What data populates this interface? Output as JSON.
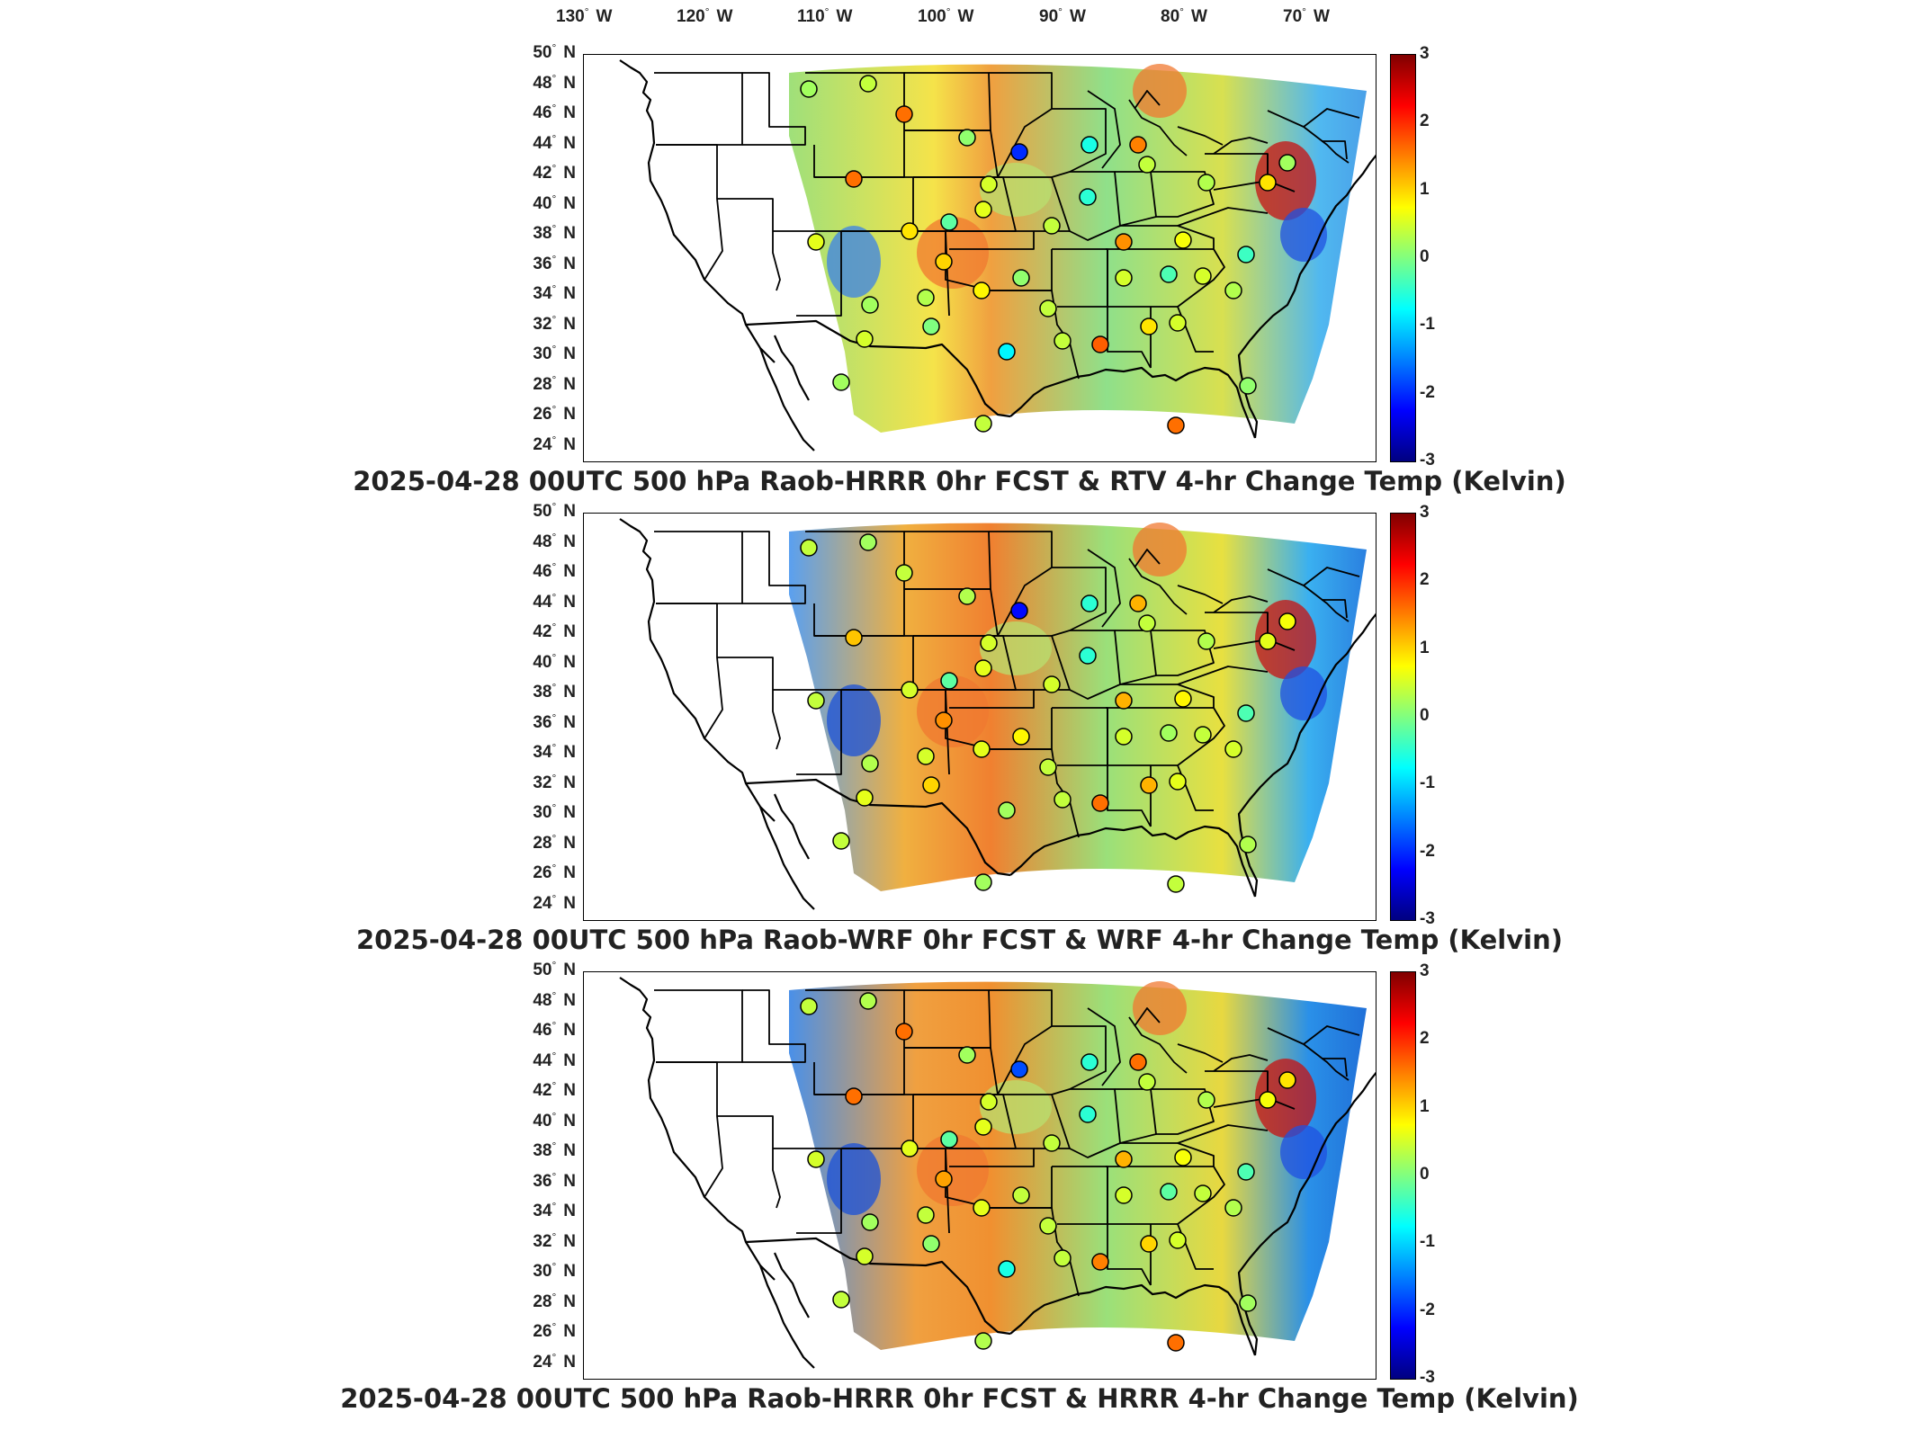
{
  "lon_labels": [
    {
      "deg": "130",
      "hemi": "W"
    },
    {
      "deg": "120",
      "hemi": "W"
    },
    {
      "deg": "110",
      "hemi": "W"
    },
    {
      "deg": "100",
      "hemi": "W"
    },
    {
      "deg": "90",
      "hemi": "W"
    },
    {
      "deg": "80",
      "hemi": "W"
    },
    {
      "deg": "70",
      "hemi": "W"
    }
  ],
  "lat_labels": [
    {
      "deg": "50",
      "hemi": "N"
    },
    {
      "deg": "48",
      "hemi": "N"
    },
    {
      "deg": "46",
      "hemi": "N"
    },
    {
      "deg": "44",
      "hemi": "N"
    },
    {
      "deg": "42",
      "hemi": "N"
    },
    {
      "deg": "40",
      "hemi": "N"
    },
    {
      "deg": "38",
      "hemi": "N"
    },
    {
      "deg": "36",
      "hemi": "N"
    },
    {
      "deg": "34",
      "hemi": "N"
    },
    {
      "deg": "32",
      "hemi": "N"
    },
    {
      "deg": "30",
      "hemi": "N"
    },
    {
      "deg": "28",
      "hemi": "N"
    },
    {
      "deg": "26",
      "hemi": "N"
    },
    {
      "deg": "24",
      "hemi": "N"
    }
  ],
  "colorbar": {
    "ticks": [
      "3",
      "2",
      "1",
      "0",
      "-1",
      "-2",
      "-3"
    ],
    "colors": [
      "#800000",
      "#ff0000",
      "#ff8000",
      "#ffff00",
      "#80ff80",
      "#00ffff",
      "#0080ff",
      "#0000ff",
      "#000080"
    ]
  },
  "panels": [
    {
      "title": "2025-04-28 00UTC 500 hPa Raob-HRRR 0hr FCST & RTV 4-hr Change Temp (Kelvin)"
    },
    {
      "title": "2025-04-28 00UTC 500 hPa Raob-WRF 0hr FCST & WRF 4-hr Change Temp (Kelvin)"
    },
    {
      "title": "2025-04-28 00UTC 500 hPa Raob-HRRR 0hr FCST & HRRR 4-hr Change Temp (Kelvin)"
    }
  ],
  "raob_station_values": [
    [
      0.2,
      0.4,
      1.6,
      0.1,
      -2.0,
      -0.6,
      1.5,
      1.6,
      0.5,
      -0.5,
      0.4,
      0.3,
      0.9,
      0.2,
      0.6,
      0.9,
      -0.2,
      0.6,
      0.4,
      1.4,
      0.7,
      -0.4,
      1.0,
      0.1,
      0.2,
      0.3,
      0.8,
      0.4,
      0.5,
      -0.3,
      0.5,
      0.3,
      0.5,
      0.0,
      -0.8,
      0.4,
      1.7,
      0.9,
      0.5
    ],
    [
      0.4,
      0.2,
      0.4,
      0.3,
      -2.2,
      -0.5,
      1.2,
      1.1,
      0.5,
      -0.5,
      0.4,
      0.3,
      0.6,
      0.7,
      0.4,
      0.5,
      -0.2,
      0.6,
      0.5,
      1.2,
      0.8,
      -0.3,
      1.4,
      0.8,
      0.3,
      0.5,
      0.6,
      0.4,
      0.5,
      0.2,
      0.4,
      0.5,
      0.6,
      1.0,
      0.2,
      0.4,
      1.6,
      1.2,
      0.6
    ],
    [
      0.4,
      0.3,
      1.6,
      0.2,
      -1.8,
      -0.5,
      1.6,
      1.6,
      0.5,
      -0.5,
      0.4,
      0.3,
      0.7,
      0.9,
      0.5,
      0.6,
      -0.2,
      0.6,
      0.4,
      1.2,
      0.7,
      -0.3,
      1.3,
      0.4,
      0.2,
      0.4,
      0.6,
      0.4,
      0.5,
      -0.2,
      0.4,
      0.3,
      0.5,
      0.1,
      -0.6,
      0.4,
      1.5,
      1.0,
      0.5
    ]
  ]
}
